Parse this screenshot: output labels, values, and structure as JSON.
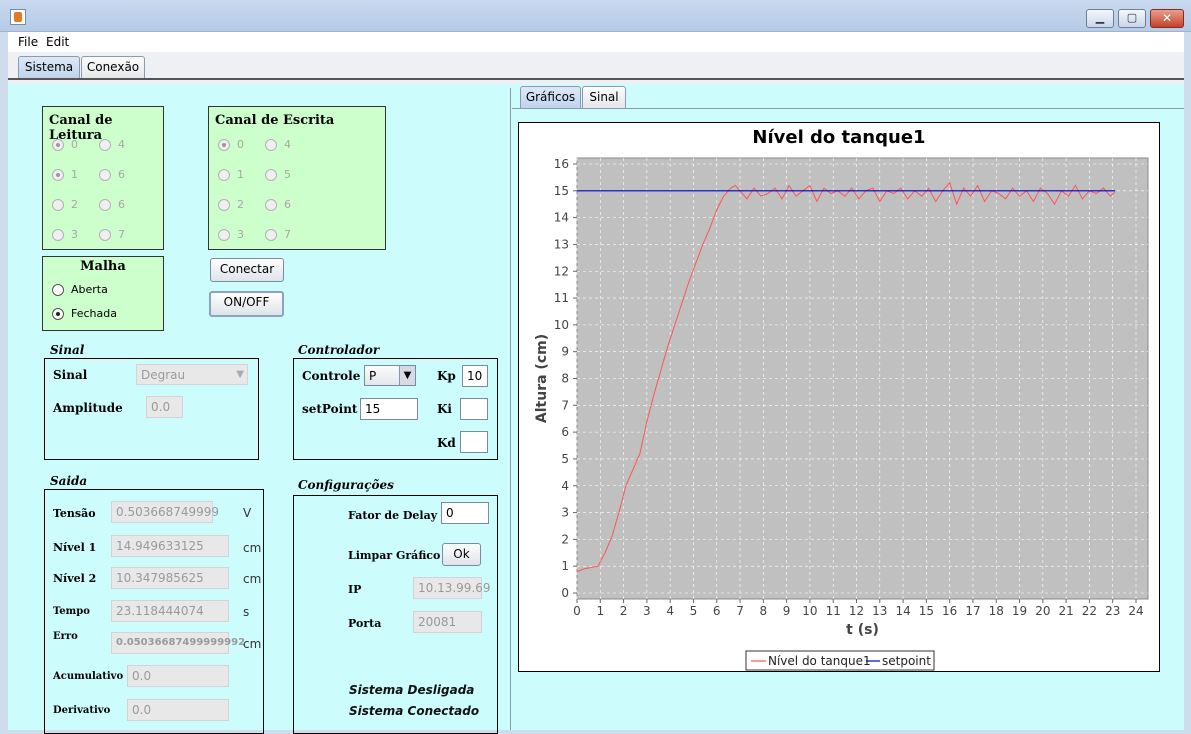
{
  "menu": {
    "file": "File",
    "edit": "Edit"
  },
  "tabs": {
    "sistema": "Sistema",
    "conexao": "Conexão"
  },
  "right_tabs": {
    "graficos": "Gráficos",
    "sinal": "Sinal"
  },
  "canal_leitura": {
    "title": "Canal de Leitura",
    "options": [
      "0",
      "4",
      "1",
      "6",
      "2",
      "6",
      "3",
      "7"
    ],
    "selected": [
      "0",
      "1"
    ]
  },
  "canal_escrita": {
    "title": "Canal de Escrita",
    "options": [
      "0",
      "4",
      "1",
      "5",
      "2",
      "6",
      "3",
      "7"
    ],
    "selected": [
      "0"
    ]
  },
  "malha": {
    "title": "Malha",
    "aberta": "Aberta",
    "fechada": "Fechada",
    "selected": "Fechada"
  },
  "buttons": {
    "conectar": "Conectar",
    "onoff": "ON/OFF",
    "ok": "Ok"
  },
  "sinal": {
    "section": "Sinal",
    "sinal_label": "Sinal",
    "sinal_value": "Degrau",
    "amplitude_label": "Amplitude",
    "amplitude_value": "0.0"
  },
  "controlador": {
    "section": "Controlador",
    "controle_label": "Controle",
    "controle_value": "P",
    "setpoint_label": "setPoint",
    "setpoint_value": "15",
    "kp_label": "Kp",
    "kp_value": "10",
    "ki_label": "Ki",
    "ki_value": "",
    "kd_label": "Kd",
    "kd_value": ""
  },
  "saida": {
    "section": "Saida",
    "tensao_label": "Tensão",
    "tensao_value": "0.503668749999",
    "tensao_unit": "V",
    "nivel1_label": "Nível 1",
    "nivel1_value": "14.949633125",
    "nivel1_unit": "cm",
    "nivel2_label": "Nível 2",
    "nivel2_value": "10.347985625",
    "nivel2_unit": "cm",
    "tempo_label": "Tempo",
    "tempo_value": "23.118444074",
    "tempo_unit": "s",
    "erro_label": "Erro",
    "erro_value": "0.05036687499999992",
    "erro_unit": "cm",
    "acumulativo_label": "Acumulativo",
    "acumulativo_value": "0.0",
    "derivativo_label": "Derivativo",
    "derivativo_value": "0.0"
  },
  "config": {
    "section": "Configurações",
    "delay_label": "Fator de Delay",
    "delay_value": "0",
    "limpar_label": "Limpar Gráfico",
    "ip_label": "IP",
    "ip_value": "10.13.99.69",
    "porta_label": "Porta",
    "porta_value": "20081",
    "status1": "Sistema Desligada",
    "status2": "Sistema Conectado"
  },
  "chart_data": {
    "type": "line",
    "title": "Nível do tanque1",
    "xlabel": "t (s)",
    "ylabel": "Altura (cm)",
    "xlim": [
      0,
      24
    ],
    "ylim": [
      0,
      16
    ],
    "xticks": [
      "0",
      "1",
      "2",
      "3",
      "4",
      "5",
      "6",
      "7",
      "8",
      "9",
      "10",
      "11",
      "12",
      "13",
      "14",
      "15",
      "16",
      "17",
      "18",
      "19",
      "20",
      "21",
      "22",
      "23",
      "24"
    ],
    "yticks": [
      "0",
      "1",
      "2",
      "3",
      "4",
      "5",
      "6",
      "7",
      "8",
      "9",
      "10",
      "11",
      "12",
      "13",
      "14",
      "15",
      "16"
    ],
    "grid": true,
    "legend_position": "bottom",
    "colors": {
      "level": "#ff5555",
      "setpoint": "#0000cc",
      "plot_bg": "#c0c0c0"
    },
    "series": [
      {
        "name": "Nível do tanque1",
        "x": [
          0,
          0.3,
          0.6,
          0.9,
          1.2,
          1.5,
          1.8,
          2.1,
          2.4,
          2.7,
          3.0,
          3.3,
          3.6,
          3.9,
          4.2,
          4.5,
          4.8,
          5.1,
          5.4,
          5.7,
          6.0,
          6.3,
          6.6,
          6.8,
          7.0,
          7.3,
          7.6,
          7.9,
          8.2,
          8.5,
          8.8,
          9.1,
          9.4,
          9.7,
          10.0,
          10.3,
          10.6,
          10.9,
          11.2,
          11.5,
          11.8,
          12.1,
          12.4,
          12.7,
          13.0,
          13.3,
          13.6,
          13.9,
          14.2,
          14.5,
          14.8,
          15.1,
          15.4,
          15.7,
          16.0,
          16.3,
          16.6,
          16.9,
          17.2,
          17.5,
          17.8,
          18.1,
          18.4,
          18.7,
          19.0,
          19.3,
          19.6,
          19.9,
          20.2,
          20.5,
          20.8,
          21.1,
          21.4,
          21.7,
          22.0,
          22.3,
          22.6,
          22.9,
          23.1
        ],
        "y": [
          0.8,
          0.9,
          0.95,
          1.0,
          1.5,
          2.1,
          3.0,
          4.0,
          4.6,
          5.2,
          6.4,
          7.4,
          8.3,
          9.2,
          10.0,
          10.8,
          11.6,
          12.3,
          13.0,
          13.6,
          14.3,
          14.8,
          15.1,
          15.2,
          15.0,
          14.7,
          15.1,
          14.8,
          14.9,
          15.1,
          14.7,
          15.2,
          14.8,
          15.0,
          15.2,
          14.6,
          15.1,
          14.9,
          15.0,
          14.8,
          15.1,
          14.7,
          15.0,
          15.1,
          14.6,
          15.0,
          14.9,
          15.1,
          14.7,
          15.0,
          14.8,
          15.1,
          14.6,
          15.0,
          15.3,
          14.5,
          15.1,
          14.8,
          15.2,
          14.6,
          15.0,
          14.9,
          14.7,
          15.1,
          14.8,
          15.0,
          14.6,
          15.1,
          14.9,
          14.5,
          15.0,
          14.8,
          15.2,
          14.7,
          15.0,
          14.9,
          15.1,
          14.8,
          14.95
        ]
      },
      {
        "name": "setpoint",
        "x": [
          0,
          23.1
        ],
        "y": [
          15,
          15
        ]
      }
    ]
  }
}
